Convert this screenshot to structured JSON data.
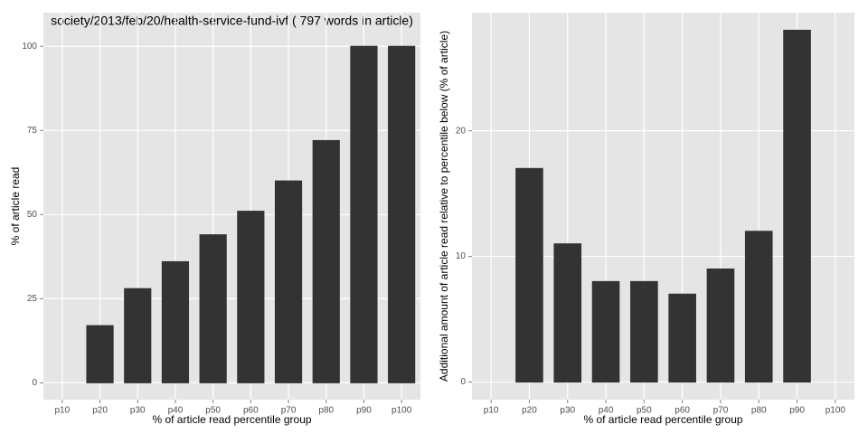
{
  "chart_data": [
    {
      "type": "bar",
      "title": "society/2013/feb/20/health-service-fund-ivf ( 797 words in article)",
      "x_label": "% of article read percentile group",
      "y_label": "% of article read",
      "categories": [
        "p10",
        "p20",
        "p30",
        "p40",
        "p50",
        "p60",
        "p70",
        "p80",
        "p90",
        "p100"
      ],
      "values": [
        0,
        17,
        28,
        36,
        44,
        51,
        60,
        72,
        100,
        100
      ],
      "color": "#333333",
      "ylim": [
        -5,
        110
      ],
      "yticks": [
        0,
        25,
        50,
        75,
        100
      ],
      "grid": true
    },
    {
      "type": "bar",
      "x_label": "% of article read percentile group",
      "y_label": "Additional amount of article read relative to percentile below (% of article)",
      "categories": [
        "p10",
        "p20",
        "p30",
        "p40",
        "p50",
        "p60",
        "p70",
        "p80",
        "p90",
        "p100"
      ],
      "values": [
        0,
        17,
        11,
        8,
        8,
        7,
        9,
        12,
        28,
        0
      ],
      "color": "#333333",
      "ylim": [
        -1.4,
        29.4
      ],
      "yticks": [
        0,
        10,
        20
      ],
      "grid": true
    }
  ]
}
